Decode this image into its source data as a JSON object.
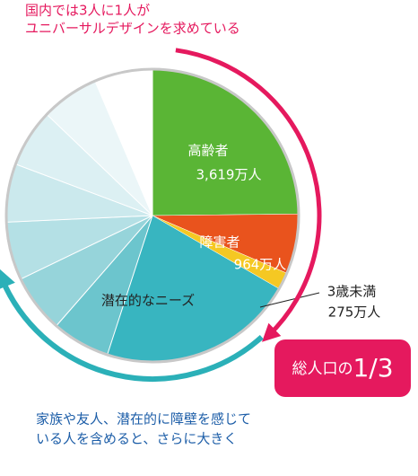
{
  "chart_data": {
    "type": "pie",
    "caption_top": [
      "国内では3人に1人が",
      "ユニバーサルデザインを求めている"
    ],
    "caption_bottom": [
      "家族や友人、潜在的に障壁を感じて",
      "いる人を含めると、さらに大きく"
    ],
    "categories": [
      "高齢者",
      "障害者",
      "3歳未満"
    ],
    "values": [
      3619,
      964,
      275
    ],
    "value_labels": [
      "3,619万人",
      "964万人",
      "275万人"
    ],
    "colors": [
      "#5ab535",
      "#e9531d",
      "#f5c823"
    ],
    "needs_label": "潜在的なニーズ",
    "badge_prefix": "総人口の",
    "badge_fraction": "1/3"
  }
}
